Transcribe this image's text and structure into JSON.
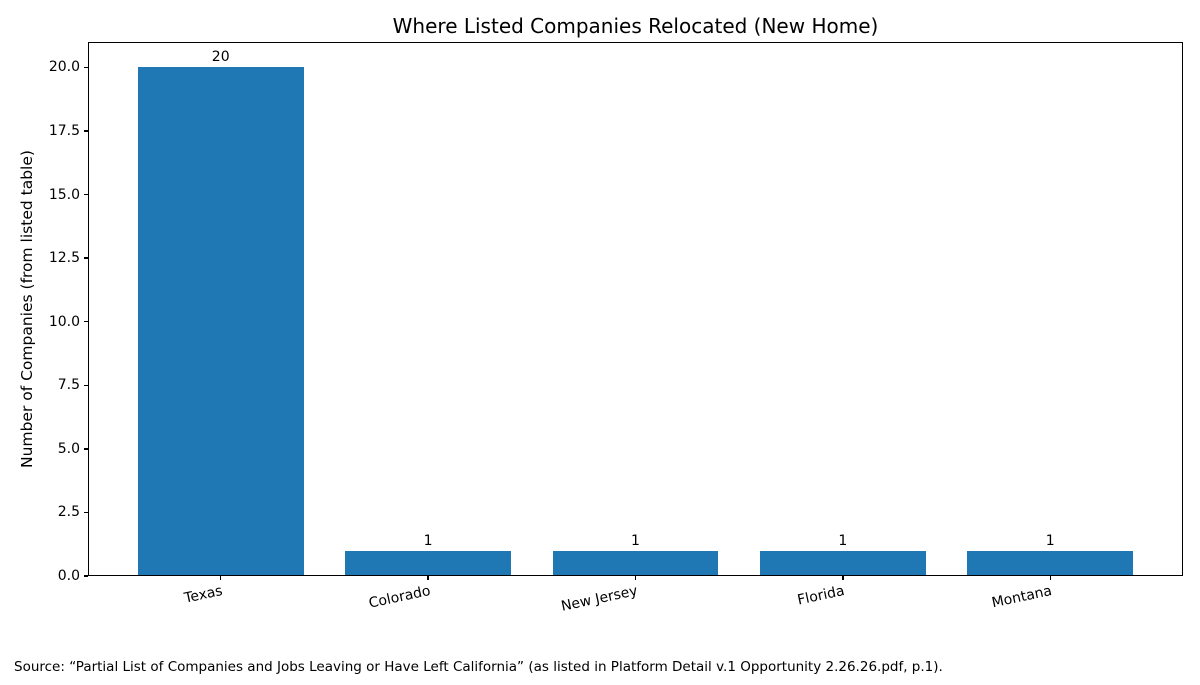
{
  "chart_data": {
    "type": "bar",
    "title": "Where Listed Companies Relocated (New Home)",
    "xlabel": "",
    "ylabel": "Number of Companies (from listed table)",
    "categories": [
      "Texas",
      "Colorado",
      "New Jersey",
      "Florida",
      "Montana"
    ],
    "values": [
      20,
      1,
      1,
      1,
      1
    ],
    "value_labels": [
      "20",
      "1",
      "1",
      "1",
      "1"
    ],
    "bar_color": "#1f77b4",
    "axis_color": "#000000",
    "ylim": [
      0,
      21
    ],
    "yticks": [
      0,
      2.5,
      5,
      7.5,
      10,
      12.5,
      15,
      17.5,
      20
    ],
    "ytick_labels": [
      "0.0",
      "2.5",
      "5.0",
      "7.5",
      "10.0",
      "12.5",
      "15.0",
      "17.5",
      "20.0"
    ],
    "x_tick_rotation_deg": 12,
    "grid": false,
    "legend": null,
    "source": "Source: “Partial List of Companies and Jobs Leaving or Have Left California” (as listed in Platform Detail v.1 Opportunity 2.26.26.pdf, p.1)."
  }
}
